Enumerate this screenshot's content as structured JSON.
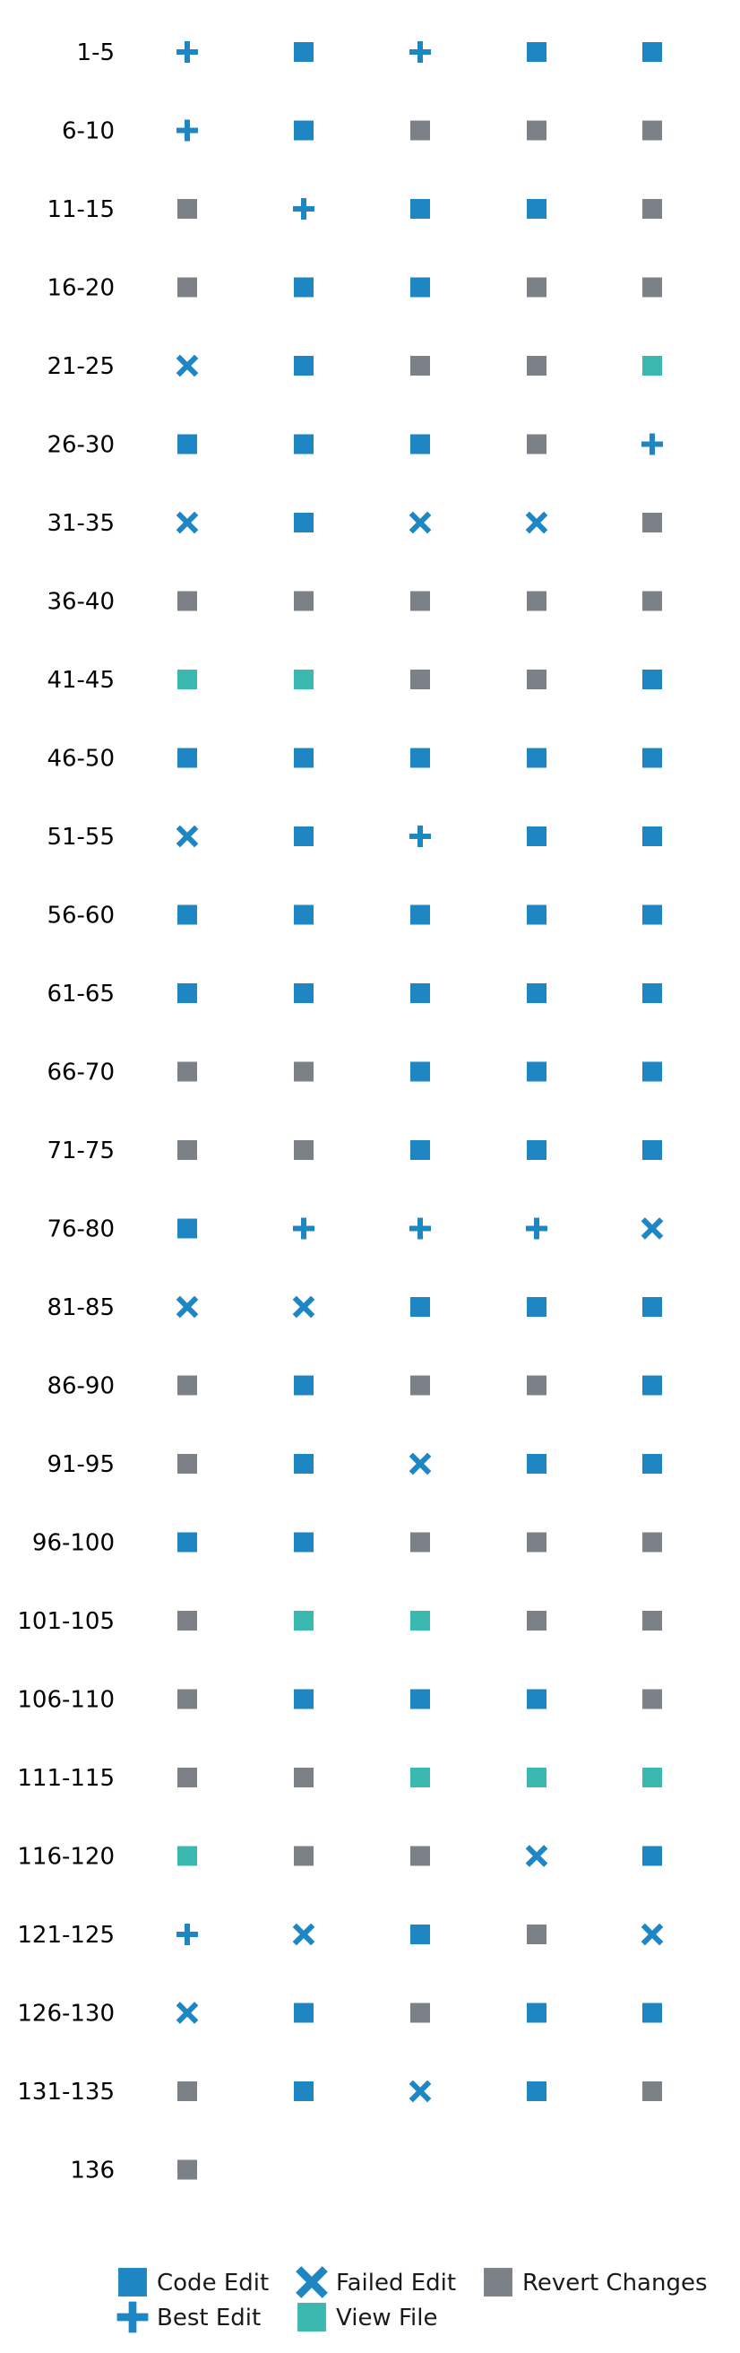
{
  "chart_data": {
    "type": "scatter",
    "title": "",
    "xlabel": "",
    "ylabel": "",
    "grid": false,
    "legend_position": "bottom",
    "columns_per_row": 5,
    "categories": {
      "code_edit": {
        "label": "Code Edit",
        "marker": "square",
        "color": "#1f86c4"
      },
      "best_edit": {
        "label": "Best Edit",
        "marker": "plus",
        "color": "#1f86c4"
      },
      "failed_edit": {
        "label": "Failed Edit",
        "marker": "x",
        "color": "#1f86c4"
      },
      "view_file": {
        "label": "View File",
        "marker": "square",
        "color": "#3bb8b0"
      },
      "revert_changes": {
        "label": "Revert Changes",
        "marker": "square",
        "color": "#7b8187"
      }
    },
    "legend_order": [
      "code_edit",
      "failed_edit",
      "revert_changes",
      "best_edit",
      "view_file"
    ],
    "rows": [
      {
        "label": "1-5",
        "steps": [
          "best_edit",
          "code_edit",
          "best_edit",
          "code_edit",
          "code_edit"
        ]
      },
      {
        "label": "6-10",
        "steps": [
          "best_edit",
          "code_edit",
          "revert_changes",
          "revert_changes",
          "revert_changes"
        ]
      },
      {
        "label": "11-15",
        "steps": [
          "revert_changes",
          "best_edit",
          "code_edit",
          "code_edit",
          "revert_changes"
        ]
      },
      {
        "label": "16-20",
        "steps": [
          "revert_changes",
          "code_edit",
          "code_edit",
          "revert_changes",
          "revert_changes"
        ]
      },
      {
        "label": "21-25",
        "steps": [
          "failed_edit",
          "code_edit",
          "revert_changes",
          "revert_changes",
          "view_file"
        ]
      },
      {
        "label": "26-30",
        "steps": [
          "code_edit",
          "code_edit",
          "code_edit",
          "revert_changes",
          "best_edit"
        ]
      },
      {
        "label": "31-35",
        "steps": [
          "failed_edit",
          "code_edit",
          "failed_edit",
          "failed_edit",
          "revert_changes"
        ]
      },
      {
        "label": "36-40",
        "steps": [
          "revert_changes",
          "revert_changes",
          "revert_changes",
          "revert_changes",
          "revert_changes"
        ]
      },
      {
        "label": "41-45",
        "steps": [
          "view_file",
          "view_file",
          "revert_changes",
          "revert_changes",
          "code_edit"
        ]
      },
      {
        "label": "46-50",
        "steps": [
          "code_edit",
          "code_edit",
          "code_edit",
          "code_edit",
          "code_edit"
        ]
      },
      {
        "label": "51-55",
        "steps": [
          "failed_edit",
          "code_edit",
          "best_edit",
          "code_edit",
          "code_edit"
        ]
      },
      {
        "label": "56-60",
        "steps": [
          "code_edit",
          "code_edit",
          "code_edit",
          "code_edit",
          "code_edit"
        ]
      },
      {
        "label": "61-65",
        "steps": [
          "code_edit",
          "code_edit",
          "code_edit",
          "code_edit",
          "code_edit"
        ]
      },
      {
        "label": "66-70",
        "steps": [
          "revert_changes",
          "revert_changes",
          "code_edit",
          "code_edit",
          "code_edit"
        ]
      },
      {
        "label": "71-75",
        "steps": [
          "revert_changes",
          "revert_changes",
          "code_edit",
          "code_edit",
          "code_edit"
        ]
      },
      {
        "label": "76-80",
        "steps": [
          "code_edit",
          "best_edit",
          "best_edit",
          "best_edit",
          "failed_edit"
        ]
      },
      {
        "label": "81-85",
        "steps": [
          "failed_edit",
          "failed_edit",
          "code_edit",
          "code_edit",
          "code_edit"
        ]
      },
      {
        "label": "86-90",
        "steps": [
          "revert_changes",
          "code_edit",
          "revert_changes",
          "revert_changes",
          "code_edit"
        ]
      },
      {
        "label": "91-95",
        "steps": [
          "revert_changes",
          "code_edit",
          "failed_edit",
          "code_edit",
          "code_edit"
        ]
      },
      {
        "label": "96-100",
        "steps": [
          "code_edit",
          "code_edit",
          "revert_changes",
          "revert_changes",
          "revert_changes"
        ]
      },
      {
        "label": "101-105",
        "steps": [
          "revert_changes",
          "view_file",
          "view_file",
          "revert_changes",
          "revert_changes"
        ]
      },
      {
        "label": "106-110",
        "steps": [
          "revert_changes",
          "code_edit",
          "code_edit",
          "code_edit",
          "revert_changes"
        ]
      },
      {
        "label": "111-115",
        "steps": [
          "revert_changes",
          "revert_changes",
          "view_file",
          "view_file",
          "view_file"
        ]
      },
      {
        "label": "116-120",
        "steps": [
          "view_file",
          "revert_changes",
          "revert_changes",
          "failed_edit",
          "code_edit"
        ]
      },
      {
        "label": "121-125",
        "steps": [
          "best_edit",
          "failed_edit",
          "code_edit",
          "revert_changes",
          "failed_edit"
        ]
      },
      {
        "label": "126-130",
        "steps": [
          "failed_edit",
          "code_edit",
          "revert_changes",
          "code_edit",
          "code_edit"
        ]
      },
      {
        "label": "131-135",
        "steps": [
          "revert_changes",
          "code_edit",
          "failed_edit",
          "code_edit",
          "revert_changes"
        ]
      },
      {
        "label": "136",
        "steps": [
          "revert_changes"
        ]
      }
    ]
  }
}
